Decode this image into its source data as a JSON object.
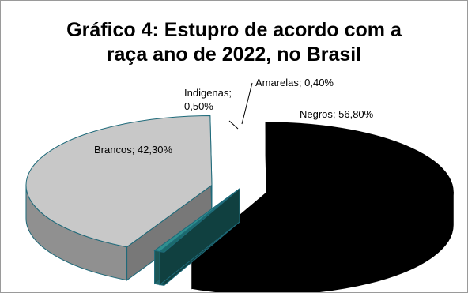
{
  "chart_data": {
    "type": "pie",
    "title_lines": [
      "Gráfico 4: Estupro de acordo com a",
      "raça ano de 2022, no Brasil"
    ],
    "slices": [
      {
        "name": "Negros",
        "value": 56.8,
        "label": "Negros; 56,80%",
        "color": "#000000",
        "exploded": true
      },
      {
        "name": "Amarelas",
        "value": 0.4,
        "label": "Amarelas; 0,40%",
        "color": "#1a6b6b",
        "exploded": false
      },
      {
        "name": "Indigenas",
        "value": 0.5,
        "label_lines": [
          "Indigenas;",
          "0,50%"
        ],
        "color": "#2f8f8f",
        "exploded": false
      },
      {
        "name": "Brancos",
        "value": 42.3,
        "label": "Brancos; 42,30%",
        "color": "#c8c8c8",
        "exploded": true
      }
    ],
    "style": "3d-exploded"
  }
}
